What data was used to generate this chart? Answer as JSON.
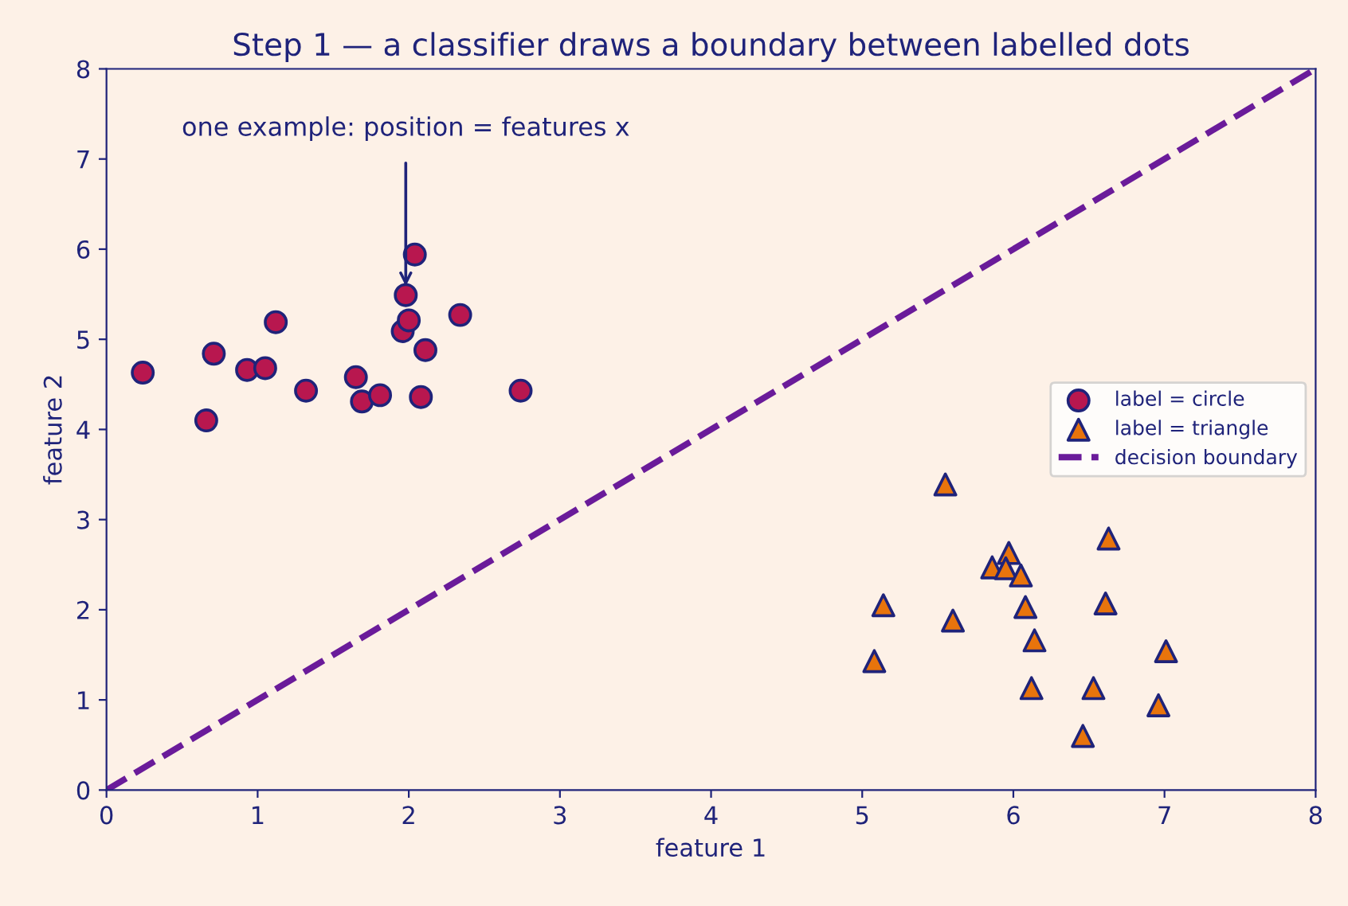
{
  "chart_data": {
    "type": "scatter",
    "title": "Step 1 — a classifier draws a boundary between labelled dots",
    "xlabel": "feature 1",
    "ylabel": "feature 2",
    "xlim": [
      0,
      8
    ],
    "ylim": [
      0,
      8
    ],
    "xticks": [
      0,
      1,
      2,
      3,
      4,
      5,
      6,
      7,
      8
    ],
    "yticks": [
      0,
      1,
      2,
      3,
      4,
      5,
      6,
      7,
      8
    ],
    "grid": false,
    "legend": "right",
    "annotations": [
      {
        "text": "one example: position = features x",
        "x": 1.98,
        "y": 5.49
      }
    ],
    "series": [
      {
        "name": "label = circle",
        "color": "#b8174f",
        "marker": "circle",
        "x": [
          0.24,
          0.66,
          0.71,
          0.93,
          1.05,
          1.12,
          1.32,
          1.65,
          1.69,
          1.81,
          1.96,
          1.98,
          2.0,
          2.04,
          2.11,
          2.08,
          2.34,
          2.74
        ],
        "values": [
          4.63,
          4.1,
          4.84,
          4.66,
          4.68,
          5.19,
          4.43,
          4.58,
          4.31,
          4.38,
          5.09,
          5.49,
          5.21,
          5.94,
          4.88,
          4.36,
          5.27,
          4.43
        ]
      },
      {
        "name": "label = triangle",
        "color": "#e8740c",
        "marker": "triangle",
        "x": [
          5.55,
          6.63,
          5.97,
          5.86,
          5.95,
          6.05,
          5.14,
          5.6,
          6.08,
          6.61,
          6.14,
          5.08,
          7.01,
          6.12,
          6.53,
          6.96,
          6.46
        ],
        "values": [
          3.39,
          2.79,
          2.63,
          2.47,
          2.46,
          2.38,
          2.05,
          1.88,
          2.03,
          2.07,
          1.66,
          1.43,
          1.54,
          1.13,
          1.13,
          0.94,
          0.6
        ]
      },
      {
        "name": "decision boundary",
        "type": "line",
        "color": "#6a1b9a",
        "line_style": "dashed",
        "marker": "none",
        "x": [
          0,
          8
        ],
        "values": [
          0,
          8
        ]
      }
    ]
  }
}
